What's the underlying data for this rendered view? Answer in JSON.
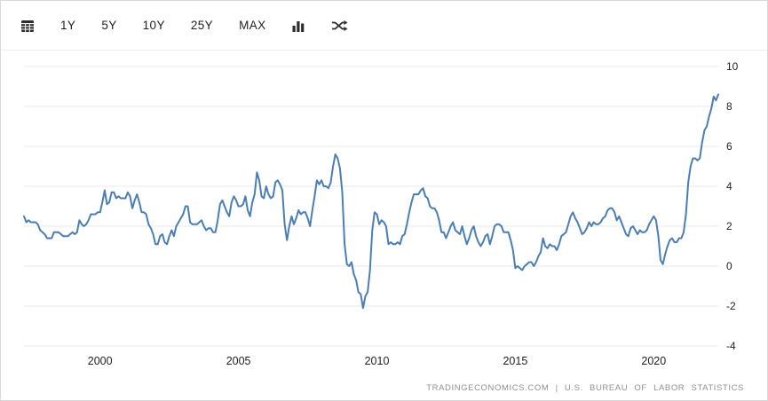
{
  "toolbar": {
    "range_buttons": [
      "1Y",
      "5Y",
      "10Y",
      "25Y",
      "MAX"
    ]
  },
  "chart_data": {
    "type": "line",
    "title": "",
    "xlabel": "",
    "ylabel": "",
    "frequency": "monthly",
    "x_start": {
      "year": 1997,
      "month": 4
    },
    "x_end": {
      "year": 2022,
      "month": 5
    },
    "ylim": [
      -4,
      10
    ],
    "y_ticks": [
      10,
      8,
      6,
      4,
      2,
      0,
      -2,
      -4
    ],
    "x_ticks": [
      2000,
      2005,
      2010,
      2015,
      2020
    ],
    "grid": true,
    "legend": "none",
    "line_color": "#4a7eb5",
    "grid_color": "#e9e9e9",
    "values": [
      2.5,
      2.2,
      2.3,
      2.2,
      2.2,
      2.2,
      2.1,
      1.8,
      1.7,
      1.6,
      1.4,
      1.4,
      1.4,
      1.7,
      1.7,
      1.7,
      1.6,
      1.5,
      1.5,
      1.5,
      1.6,
      1.7,
      1.6,
      1.7,
      2.3,
      2.1,
      2.0,
      2.1,
      2.3,
      2.6,
      2.6,
      2.6,
      2.7,
      2.7,
      3.2,
      3.8,
      3.1,
      3.2,
      3.7,
      3.7,
      3.4,
      3.5,
      3.4,
      3.4,
      3.4,
      3.7,
      3.5,
      2.9,
      3.3,
      3.6,
      3.2,
      2.7,
      2.7,
      2.6,
      2.1,
      1.9,
      1.6,
      1.1,
      1.1,
      1.5,
      1.6,
      1.2,
      1.1,
      1.5,
      1.8,
      1.5,
      2.0,
      2.2,
      2.4,
      2.6,
      3.0,
      3.0,
      2.2,
      2.1,
      2.1,
      2.1,
      2.2,
      2.3,
      2.0,
      1.8,
      1.9,
      1.9,
      1.7,
      1.7,
      2.3,
      3.1,
      3.3,
      3.0,
      2.7,
      2.5,
      3.2,
      3.5,
      3.3,
      3.0,
      3.0,
      3.1,
      3.5,
      2.8,
      2.5,
      3.2,
      3.6,
      4.7,
      4.3,
      3.5,
      3.4,
      4.0,
      3.6,
      3.4,
      3.5,
      4.2,
      4.3,
      4.1,
      3.8,
      2.1,
      1.3,
      2.0,
      2.5,
      2.1,
      2.4,
      2.8,
      2.6,
      2.7,
      2.7,
      2.4,
      2.0,
      2.8,
      3.5,
      4.3,
      4.1,
      4.3,
      4.0,
      4.0,
      3.9,
      4.2,
      5.0,
      5.6,
      5.4,
      4.9,
      3.7,
      1.1,
      0.1,
      0.0,
      0.2,
      -0.4,
      -0.7,
      -1.3,
      -1.4,
      -2.1,
      -1.5,
      -1.3,
      -0.2,
      1.8,
      2.7,
      2.6,
      2.1,
      2.3,
      2.2,
      2.0,
      1.1,
      1.2,
      1.1,
      1.1,
      1.2,
      1.1,
      1.5,
      1.6,
      2.1,
      2.7,
      3.2,
      3.6,
      3.6,
      3.6,
      3.8,
      3.9,
      3.5,
      3.4,
      3.0,
      2.9,
      2.9,
      2.7,
      2.3,
      1.7,
      1.7,
      1.4,
      1.7,
      2.0,
      2.2,
      1.8,
      1.7,
      1.6,
      2.0,
      1.5,
      1.1,
      1.4,
      1.8,
      2.0,
      1.5,
      1.2,
      1.0,
      1.2,
      1.5,
      1.6,
      1.1,
      1.5,
      2.0,
      2.1,
      2.1,
      2.0,
      1.7,
      1.7,
      1.7,
      1.3,
      0.8,
      -0.1,
      0.0,
      -0.1,
      -0.2,
      0.0,
      0.1,
      0.2,
      0.2,
      0.0,
      0.2,
      0.5,
      0.7,
      1.4,
      1.0,
      0.9,
      1.1,
      1.0,
      1.0,
      0.8,
      1.1,
      1.5,
      1.6,
      1.7,
      2.1,
      2.5,
      2.7,
      2.4,
      2.2,
      1.9,
      1.6,
      1.7,
      1.9,
      2.2,
      2.0,
      2.2,
      2.1,
      2.1,
      2.2,
      2.4,
      2.5,
      2.8,
      2.9,
      2.9,
      2.7,
      2.3,
      2.5,
      2.2,
      1.9,
      1.6,
      1.5,
      1.9,
      2.0,
      1.8,
      1.6,
      1.8,
      1.7,
      1.7,
      1.8,
      2.1,
      2.3,
      2.5,
      2.3,
      1.5,
      0.3,
      0.1,
      0.6,
      1.0,
      1.3,
      1.4,
      1.2,
      1.2,
      1.4,
      1.4,
      1.7,
      2.6,
      4.2,
      5.0,
      5.4,
      5.4,
      5.3,
      5.4,
      6.2,
      6.8,
      7.0,
      7.5,
      7.9,
      8.5,
      8.3,
      8.6
    ]
  },
  "footer": {
    "attribution": "TRADINGECONOMICS.COM | U.S. BUREAU OF LABOR STATISTICS"
  }
}
